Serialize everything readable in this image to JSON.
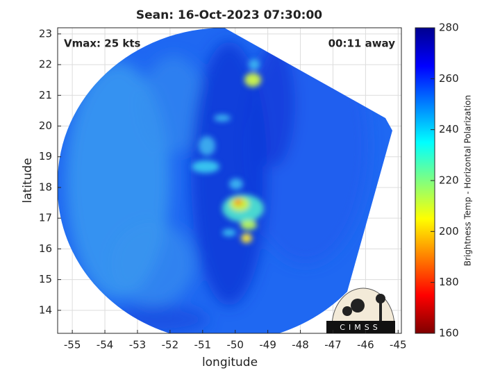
{
  "chart_data": {
    "type": "image",
    "title": "Sean: 16-Oct-2023 07:30:00",
    "xlabel": "longitude",
    "ylabel": "latitude",
    "xlim": [
      -55.45,
      -44.9
    ],
    "xticks": [
      -55,
      -54,
      -53,
      -52,
      -51,
      -50,
      -49,
      -48,
      -47,
      -46,
      -45
    ],
    "ylim": [
      13.25,
      23.2
    ],
    "yticks": [
      14,
      15,
      16,
      17,
      18,
      19,
      20,
      21,
      22,
      23
    ],
    "grid": true,
    "annotations": [
      "Vmax: 25 kts",
      "00:11 away"
    ],
    "logo": "CIMSS",
    "colorbar": {
      "label": "Brightness Temp - Horizontal Polarization",
      "lim": [
        160,
        280
      ],
      "ticks": [
        160,
        180,
        200,
        220,
        240,
        260,
        280
      ],
      "colors": [
        "#7f0000",
        "#ff0000",
        "#ff8000",
        "#ffff00",
        "#80ff80",
        "#00ffff",
        "#0080ff",
        "#0000ff",
        "#00008f"
      ]
    }
  }
}
